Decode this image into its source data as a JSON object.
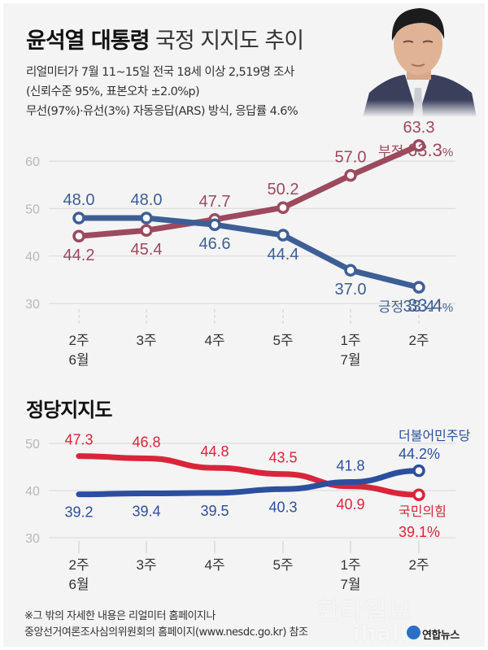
{
  "header": {
    "title_bold": "윤석열 대통령",
    "title_light": "국정 지지도 추이",
    "subtitle_lines": [
      "리얼미터가 7월 11~15일 전국 18세 이상 2,519명 조사",
      "(신뢰수준 95%, 표본오차 ±2.0%p)",
      "무선(97%)·유선(3%) 자동응답(ARS) 방식, 응답률 4.6%"
    ],
    "photo_alt": "president-portrait"
  },
  "colors": {
    "negative": "#9c4a5e",
    "positive": "#3d5f95",
    "democratic": "#2b4f9e",
    "ppp": "#d9253a",
    "grid": "#dddddd",
    "tick": "#b8b8b8"
  },
  "chart_data": [
    {
      "type": "line",
      "title": "윤석열 대통령 국정 지지도 추이",
      "categories": [
        "2주|6월",
        "3주",
        "4주",
        "5주",
        "1주|7월",
        "2주"
      ],
      "x_labels": [
        {
          "week": "2주",
          "month": "6월"
        },
        {
          "week": "3주",
          "month": ""
        },
        {
          "week": "4주",
          "month": ""
        },
        {
          "week": "5주",
          "month": ""
        },
        {
          "week": "1주",
          "month": "7월"
        },
        {
          "week": "2주",
          "month": ""
        }
      ],
      "yticks": [
        30,
        40,
        50,
        60
      ],
      "ylim": [
        30,
        60
      ],
      "grid": true,
      "series": [
        {
          "name": "부정",
          "color": "#9c4a5e",
          "values": [
            44.2,
            45.4,
            47.7,
            50.2,
            57.0,
            63.3
          ],
          "labels": [
            "44.2",
            "45.4",
            "47.7",
            "50.2",
            "57.0",
            "63.3"
          ],
          "label_pos": [
            "below",
            "below",
            "above",
            "above",
            "above",
            "above"
          ],
          "end_label": "부정",
          "end_value": "63.3",
          "end_unit": "%"
        },
        {
          "name": "긍정",
          "color": "#3d5f95",
          "values": [
            48.0,
            48.0,
            46.6,
            44.4,
            37.0,
            33.4
          ],
          "labels": [
            "48.0",
            "48.0",
            "46.6",
            "44.4",
            "37.0",
            "33.4"
          ],
          "label_pos": [
            "above",
            "above",
            "below",
            "below",
            "below",
            "below"
          ],
          "end_label": "긍정",
          "end_value": "33.4",
          "end_unit": "%"
        }
      ]
    },
    {
      "type": "line",
      "title": "정당지지도",
      "categories": [
        "2주|6월",
        "3주",
        "4주",
        "5주",
        "1주|7월",
        "2주"
      ],
      "x_labels": [
        {
          "week": "2주",
          "month": "6월"
        },
        {
          "week": "3주",
          "month": ""
        },
        {
          "week": "4주",
          "month": ""
        },
        {
          "week": "5주",
          "month": ""
        },
        {
          "week": "1주",
          "month": "7월"
        },
        {
          "week": "2주",
          "month": ""
        }
      ],
      "yticks": [
        30,
        40,
        50
      ],
      "ylim": [
        30,
        50
      ],
      "grid": true,
      "series": [
        {
          "name": "국민의힘",
          "color": "#d9253a",
          "values": [
            47.3,
            46.8,
            44.8,
            43.5,
            40.9,
            39.1
          ],
          "labels": [
            "47.3",
            "46.8",
            "44.8",
            "43.5",
            "40.9",
            "39.1%"
          ],
          "label_pos": [
            "above",
            "above",
            "above",
            "above",
            "below",
            "none"
          ],
          "end_label": "국민의힘",
          "end_value": "39.1%"
        },
        {
          "name": "더불어민주당",
          "color": "#2b4f9e",
          "values": [
            39.2,
            39.4,
            39.5,
            40.3,
            41.8,
            44.2
          ],
          "labels": [
            "39.2",
            "39.4",
            "39.5",
            "40.3",
            "41.8",
            "44.2%"
          ],
          "label_pos": [
            "below",
            "below",
            "below",
            "below",
            "above",
            "none"
          ],
          "end_label": "더불어민주당",
          "end_value": "44.2%"
        }
      ]
    }
  ],
  "footnote": {
    "lines": [
      "※그 밖의 자세한 내용은 리얼미터 홈페이지나",
      " 중앙선거여론조사심의위원회의 홈페이지(www.nesdc.go.kr) 참조"
    ]
  },
  "watermark": {
    "text": "한라일보",
    "text2": "ihalla",
    "credit": "연합뉴스"
  }
}
